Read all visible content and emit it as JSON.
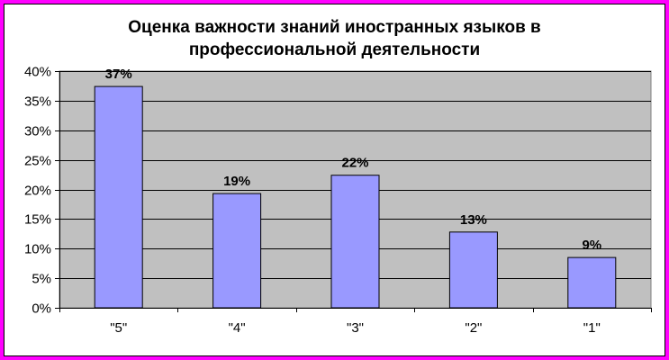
{
  "chart_data": {
    "type": "bar",
    "title_line1": "Оценка важности знаний иностранных языков в",
    "title_line2": "профессиональной деятельности",
    "categories": [
      "\"5\"",
      "\"4\"",
      "\"3\"",
      "\"2\"",
      "\"1\""
    ],
    "values": [
      37.4,
      19.3,
      22.4,
      12.8,
      8.5
    ],
    "data_labels": [
      "37%",
      "19%",
      "22%",
      "13%",
      "9%"
    ],
    "y_ticks": [
      {
        "value": 0,
        "label": "0%"
      },
      {
        "value": 5,
        "label": "5%"
      },
      {
        "value": 10,
        "label": "10%"
      },
      {
        "value": 15,
        "label": "15%"
      },
      {
        "value": 20,
        "label": "20%"
      },
      {
        "value": 25,
        "label": "25%"
      },
      {
        "value": 30,
        "label": "30%"
      },
      {
        "value": 35,
        "label": "35%"
      },
      {
        "value": 40,
        "label": "40%"
      }
    ],
    "ylim": [
      0,
      40
    ],
    "grid": true,
    "legend": "none",
    "xlabel": "",
    "ylabel": "",
    "colors": {
      "bar": "#9999ff",
      "plot_background": "#c0c0c0",
      "frame": "#ff00ff"
    }
  }
}
